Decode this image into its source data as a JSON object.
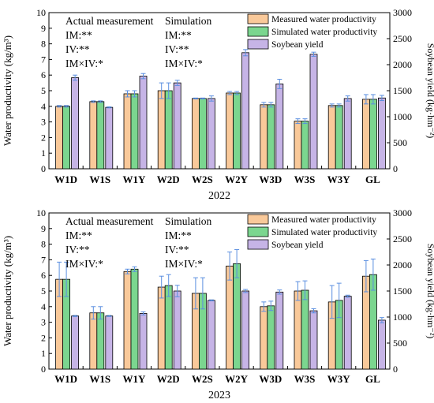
{
  "colors": {
    "measured": "#f9c99a",
    "simulated": "#7bd68f",
    "yield": "#c6b4e6",
    "error_bar": "#5b8fe0",
    "edge": "#000000"
  },
  "chart_data": [
    {
      "type": "bar",
      "title": "2022",
      "categories": [
        "W1D",
        "W1S",
        "W1Y",
        "W2D",
        "W2S",
        "W2Y",
        "W3D",
        "W3S",
        "W3Y",
        "GL"
      ],
      "ylabel": "Water productivity (kg/m³)",
      "y2label": "Soybean yield (kg·hm⁻²)",
      "ylim": [
        0,
        10
      ],
      "y2lim": [
        0,
        3000
      ],
      "yticks": [
        "0",
        "1",
        "2",
        "3",
        "4",
        "5",
        "6",
        "7",
        "8",
        "9",
        "10"
      ],
      "y2ticks": [
        "0",
        "500",
        "1000",
        "1500",
        "2000",
        "2500",
        "3000"
      ],
      "legend": [
        "Measured water productivity",
        "Simulated water productivity",
        "Soybean yield"
      ],
      "legend_position": "top-right",
      "annotations": {
        "actual": {
          "title": "Actual measurement",
          "lines": [
            "IM:**",
            "IV:**",
            "IM×IV:*"
          ]
        },
        "simulation": {
          "title": "Simulation",
          "lines": [
            "IM:**",
            "IV:**",
            "IM×IV:*"
          ]
        }
      },
      "series": [
        {
          "name": "Measured water productivity",
          "axis": "left",
          "values": [
            4.0,
            4.3,
            4.8,
            5.0,
            4.5,
            4.85,
            4.1,
            3.05,
            4.05,
            4.45
          ],
          "errors": [
            0.05,
            0.05,
            0.2,
            0.5,
            0.03,
            0.1,
            0.15,
            0.15,
            0.1,
            0.3
          ]
        },
        {
          "name": "Simulated water productivity",
          "axis": "left",
          "values": [
            4.0,
            4.3,
            4.8,
            5.0,
            4.5,
            4.85,
            4.1,
            3.05,
            4.05,
            4.45
          ],
          "errors": [
            0.05,
            0.05,
            0.2,
            0.5,
            0.03,
            0.1,
            0.15,
            0.15,
            0.1,
            0.3
          ]
        },
        {
          "name": "Soybean yield",
          "axis": "right",
          "values": [
            1750,
            1180,
            1780,
            1650,
            1350,
            2230,
            1630,
            2200,
            1350,
            1360
          ],
          "errors": [
            50,
            10,
            50,
            50,
            50,
            60,
            90,
            40,
            50,
            50
          ]
        }
      ]
    },
    {
      "type": "bar",
      "title": "2023",
      "categories": [
        "W1D",
        "W1S",
        "W1Y",
        "W2D",
        "W2S",
        "W2Y",
        "W3D",
        "W3S",
        "W3Y",
        "GL"
      ],
      "ylabel": "Water productivity (kg/m³)",
      "y2label": "Soybean yield (kg·hm⁻²)",
      "ylim": [
        0,
        10
      ],
      "y2lim": [
        0,
        3000
      ],
      "yticks": [
        "0",
        "1",
        "2",
        "3",
        "4",
        "5",
        "6",
        "7",
        "8",
        "9",
        "10"
      ],
      "y2ticks": [
        "0",
        "500",
        "1000",
        "1500",
        "2000",
        "2500",
        "3000"
      ],
      "legend": [
        "Measured water productivity",
        "Simulated water productivity",
        "Soybean yield"
      ],
      "legend_position": "top-right",
      "annotations": {
        "actual": {
          "title": "Actual measurement",
          "lines": [
            "IM:**",
            "IV:**",
            "IM×IV:*"
          ]
        },
        "simulation": {
          "title": "Simulation",
          "lines": [
            "IM:**",
            "IV:**",
            "IM×IV:*"
          ]
        }
      },
      "series": [
        {
          "name": "Measured water productivity",
          "axis": "left",
          "values": [
            5.75,
            3.6,
            6.25,
            5.25,
            4.85,
            6.6,
            4.0,
            5.0,
            4.3,
            5.95
          ],
          "errors": [
            1.1,
            0.4,
            0.15,
            0.7,
            1.0,
            0.9,
            0.3,
            0.6,
            1.05,
            1.0
          ]
        },
        {
          "name": "Simulated water productivity",
          "axis": "left",
          "values": [
            5.75,
            3.6,
            6.4,
            5.35,
            4.85,
            6.75,
            4.05,
            5.05,
            4.4,
            6.05
          ],
          "errors": [
            1.1,
            0.4,
            0.15,
            0.7,
            1.0,
            0.9,
            0.3,
            0.6,
            1.1,
            1.0
          ]
        },
        {
          "name": "Soybean yield",
          "axis": "right",
          "values": [
            1020,
            1020,
            1070,
            1500,
            1320,
            1500,
            1480,
            1120,
            1400,
            940
          ],
          "errors": [
            10,
            10,
            30,
            110,
            10,
            30,
            40,
            40,
            20,
            50
          ]
        }
      ]
    }
  ]
}
